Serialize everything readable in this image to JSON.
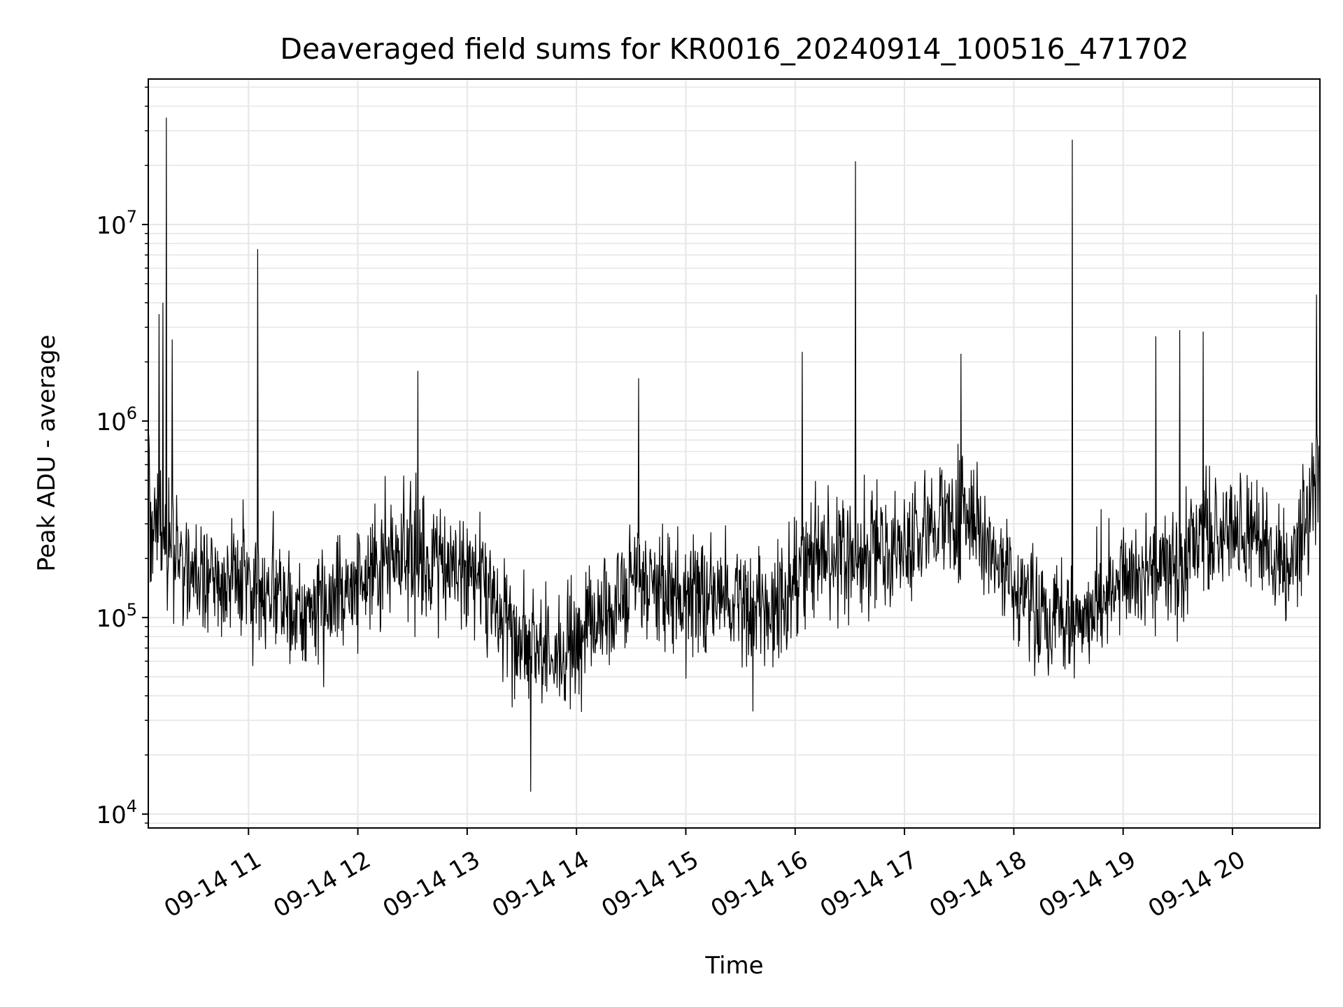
{
  "chart_data": {
    "type": "line",
    "title": "Deaveraged field sums for KR0016_20240914_100516_471702",
    "xlabel": "Time",
    "ylabel": "Peak ADU - average",
    "yscale": "log",
    "grid": true,
    "line_color": "#000000",
    "grid_color": "#e6e6e6",
    "xlim": [
      "2024-09-14 10:05",
      "2024-09-14 20:48"
    ],
    "ylim": [
      8500,
      55000000
    ],
    "x_ticks": [
      {
        "value": "2024-09-14 11:00",
        "label": "09-14 11"
      },
      {
        "value": "2024-09-14 12:00",
        "label": "09-14 12"
      },
      {
        "value": "2024-09-14 13:00",
        "label": "09-14 13"
      },
      {
        "value": "2024-09-14 14:00",
        "label": "09-14 14"
      },
      {
        "value": "2024-09-14 15:00",
        "label": "09-14 15"
      },
      {
        "value": "2024-09-14 16:00",
        "label": "09-14 16"
      },
      {
        "value": "2024-09-14 17:00",
        "label": "09-14 17"
      },
      {
        "value": "2024-09-14 18:00",
        "label": "09-14 18"
      },
      {
        "value": "2024-09-14 19:00",
        "label": "09-14 19"
      },
      {
        "value": "2024-09-14 20:00",
        "label": "09-14 20"
      }
    ],
    "y_ticks": [
      {
        "value": 10000,
        "base": "10",
        "exp": "4"
      },
      {
        "value": 100000,
        "base": "10",
        "exp": "5"
      },
      {
        "value": 1000000,
        "base": "10",
        "exp": "6"
      },
      {
        "value": 10000000,
        "base": "10",
        "exp": "7"
      }
    ],
    "series": [
      {
        "x": [
          "2024-09-14 10:05",
          "2024-09-14 10:15",
          "2024-09-14 10:30",
          "2024-09-14 10:45",
          "2024-09-14 11:00",
          "2024-09-14 11:15",
          "2024-09-14 11:30",
          "2024-09-14 11:45",
          "2024-09-14 12:00",
          "2024-09-14 12:15",
          "2024-09-14 12:30",
          "2024-09-14 12:45",
          "2024-09-14 13:00",
          "2024-09-14 13:15",
          "2024-09-14 13:30",
          "2024-09-14 13:45",
          "2024-09-14 14:00",
          "2024-09-14 14:15",
          "2024-09-14 14:30",
          "2024-09-14 14:45",
          "2024-09-14 15:00",
          "2024-09-14 15:15",
          "2024-09-14 15:30",
          "2024-09-14 15:45",
          "2024-09-14 16:00",
          "2024-09-14 16:15",
          "2024-09-14 16:30",
          "2024-09-14 16:45",
          "2024-09-14 17:00",
          "2024-09-14 17:15",
          "2024-09-14 17:30",
          "2024-09-14 17:45",
          "2024-09-14 18:00",
          "2024-09-14 18:15",
          "2024-09-14 18:30",
          "2024-09-14 18:45",
          "2024-09-14 19:00",
          "2024-09-14 19:15",
          "2024-09-14 19:30",
          "2024-09-14 19:45",
          "2024-09-14 20:00",
          "2024-09-14 20:15",
          "2024-09-14 20:30",
          "2024-09-14 20:48"
        ],
        "y": [
          350000,
          250000,
          180000,
          160000,
          150000,
          120000,
          110000,
          120000,
          150000,
          180000,
          220000,
          190000,
          170000,
          120000,
          70000,
          65000,
          75000,
          100000,
          150000,
          140000,
          120000,
          130000,
          110000,
          110000,
          170000,
          200000,
          210000,
          220000,
          230000,
          280000,
          300000,
          250000,
          150000,
          100000,
          95000,
          120000,
          160000,
          170000,
          180000,
          250000,
          280000,
          250000,
          160000,
          550000
        ]
      }
    ],
    "spikes": [
      {
        "x": "2024-09-14 10:15",
        "y": 35000000
      },
      {
        "x": "2024-09-14 10:13",
        "y": 4000000
      },
      {
        "x": "2024-09-14 10:11",
        "y": 3500000
      },
      {
        "x": "2024-09-14 10:18",
        "y": 2600000
      },
      {
        "x": "2024-09-14 11:05",
        "y": 7500000
      },
      {
        "x": "2024-09-14 12:33",
        "y": 1800000
      },
      {
        "x": "2024-09-14 14:34",
        "y": 1650000
      },
      {
        "x": "2024-09-14 16:04",
        "y": 2250000
      },
      {
        "x": "2024-09-14 16:33",
        "y": 21000000
      },
      {
        "x": "2024-09-14 17:31",
        "y": 2200000
      },
      {
        "x": "2024-09-14 18:32",
        "y": 27000000
      },
      {
        "x": "2024-09-14 19:18",
        "y": 2700000
      },
      {
        "x": "2024-09-14 19:31",
        "y": 2900000
      },
      {
        "x": "2024-09-14 19:44",
        "y": 2850000
      },
      {
        "x": "2024-09-14 20:46",
        "y": 4400000
      },
      {
        "x": "2024-09-14 13:35",
        "y": 13000
      }
    ]
  }
}
